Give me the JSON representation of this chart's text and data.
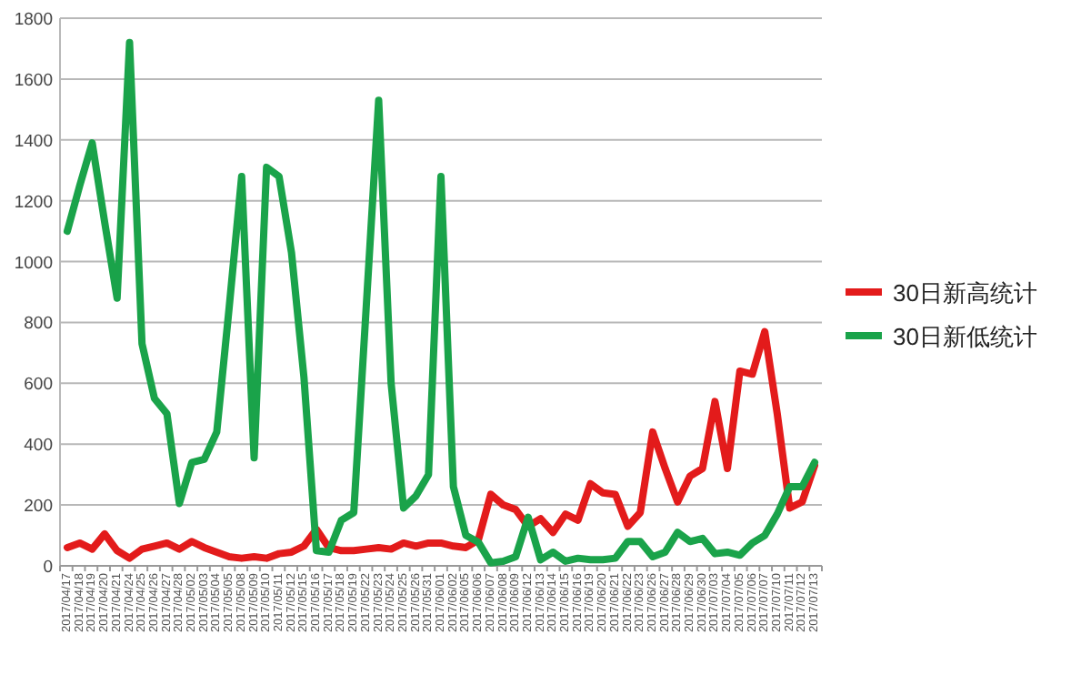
{
  "chart_data": {
    "type": "line",
    "categories": [
      "2017/04/17",
      "2017/04/18",
      "2017/04/19",
      "2017/04/20",
      "2017/04/21",
      "2017/04/24",
      "2017/04/25",
      "2017/04/26",
      "2017/04/27",
      "2017/04/28",
      "2017/05/02",
      "2017/05/03",
      "2017/05/04",
      "2017/05/05",
      "2017/05/08",
      "2017/05/09",
      "2017/05/10",
      "2017/05/11",
      "2017/05/12",
      "2017/05/15",
      "2017/05/16",
      "2017/05/17",
      "2017/05/18",
      "2017/05/19",
      "2017/05/22",
      "2017/05/23",
      "2017/05/24",
      "2017/05/25",
      "2017/05/26",
      "2017/05/31",
      "2017/06/01",
      "2017/06/02",
      "2017/06/05",
      "2017/06/06",
      "2017/06/07",
      "2017/06/08",
      "2017/06/09",
      "2017/06/12",
      "2017/06/13",
      "2017/06/14",
      "2017/06/15",
      "2017/06/16",
      "2017/06/19",
      "2017/06/20",
      "2017/06/21",
      "2017/06/22",
      "2017/06/23",
      "2017/06/26",
      "2017/06/27",
      "2017/06/28",
      "2017/06/29",
      "2017/06/30",
      "2017/07/03",
      "2017/07/04",
      "2017/07/05",
      "2017/07/06",
      "2017/07/07",
      "2017/07/10",
      "2017/07/11",
      "2017/07/12",
      "2017/07/13"
    ],
    "series": [
      {
        "name": "30日新高统计",
        "color": "#e31b1b",
        "values": [
          60,
          75,
          55,
          105,
          50,
          25,
          55,
          65,
          75,
          55,
          80,
          60,
          45,
          30,
          25,
          30,
          25,
          40,
          45,
          65,
          120,
          60,
          50,
          50,
          55,
          60,
          55,
          75,
          65,
          75,
          75,
          65,
          60,
          85,
          235,
          200,
          185,
          130,
          155,
          110,
          170,
          150,
          270,
          240,
          235,
          130,
          175,
          440,
          320,
          210,
          295,
          320,
          540,
          320,
          640,
          630,
          770,
          500,
          190,
          210,
          330
        ]
      },
      {
        "name": "30日新低统计",
        "color": "#1aa34a",
        "values": [
          1100,
          1250,
          1390,
          1130,
          880,
          1720,
          730,
          550,
          500,
          205,
          340,
          350,
          440,
          850,
          1280,
          355,
          1310,
          1280,
          1030,
          620,
          50,
          45,
          150,
          175,
          850,
          1530,
          600,
          190,
          230,
          300,
          1280,
          260,
          100,
          78,
          10,
          15,
          30,
          160,
          20,
          45,
          15,
          25,
          20,
          20,
          25,
          80,
          80,
          30,
          45,
          110,
          80,
          90,
          40,
          45,
          35,
          75,
          100,
          170,
          260,
          260,
          340
        ]
      }
    ],
    "ylim": [
      0,
      1800
    ],
    "yticks": [
      0,
      200,
      400,
      600,
      800,
      1000,
      1200,
      1400,
      1600,
      1800
    ],
    "grid": "y",
    "legend": "right"
  }
}
